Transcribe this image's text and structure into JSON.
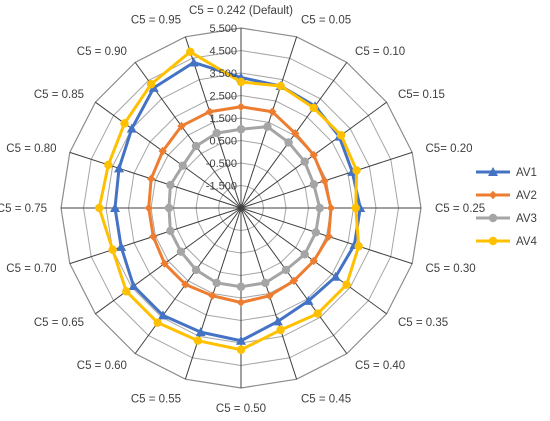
{
  "chart_data": {
    "type": "radar",
    "categories": [
      "C5 = 0.242 (Default)",
      "C5 = 0.05",
      "C5 = 0.10",
      "C5= 0.15",
      "C5= 0.20",
      "C5 = 0.25",
      "C5 = 0.30",
      "C5 = 0.35",
      "C5 = 0.40",
      "C5 = 0.45",
      "C5 = 0.50",
      "C5 = 0.55",
      "C5 = 0.60",
      "C5 = 0.65",
      "C5 = 0.70",
      "C5 = 0.75",
      "C5 = 0.80",
      "C5 = 0.85",
      "C5 = 0.90",
      "C5 = 0.95"
    ],
    "tick_labels": [
      "-1.500",
      "-0.500",
      "0.500",
      "1.500",
      "2.500",
      "3.500",
      "4.500",
      "5.500"
    ],
    "r_range": [
      -2.5,
      5.5
    ],
    "grid": true,
    "legend_position": "right",
    "series": [
      {
        "name": "AV1",
        "color": "#4472C4",
        "marker": "triangle",
        "values": [
          3.3,
          3.2,
          3.1,
          2.9,
          2.7,
          2.8,
          2.8,
          2.7,
          2.6,
          2.8,
          3.4,
          3.3,
          3.4,
          3.4,
          3.1,
          3.1,
          3.2,
          3.5,
          4.1,
          4.3
        ]
      },
      {
        "name": "AV2",
        "color": "#ED7D31",
        "marker": "diamond",
        "values": [
          2.0,
          2.0,
          1.6,
          1.5,
          1.4,
          1.5,
          1.6,
          1.5,
          1.5,
          1.6,
          1.7,
          1.6,
          1.7,
          1.7,
          1.6,
          1.6,
          1.7,
          1.8,
          2.0,
          2.0
        ]
      },
      {
        "name": "AV3",
        "color": "#A5A5A5",
        "marker": "circle",
        "values": [
          1.0,
          1.3,
          1.1,
          1.0,
          0.9,
          1.0,
          1.0,
          1.0,
          0.9,
          1.0,
          1.0,
          1.0,
          0.9,
          0.8,
          0.8,
          0.7,
          0.8,
          0.7,
          0.9,
          1.0
        ]
      },
      {
        "name": "AV4",
        "color": "#FFC000",
        "marker": "circle",
        "values": [
          3.1,
          3.2,
          3.0,
          3.0,
          2.9,
          2.6,
          3.0,
          3.3,
          3.3,
          3.2,
          3.8,
          3.7,
          3.8,
          3.8,
          3.5,
          3.8,
          3.7,
          3.9,
          4.3,
          4.8
        ]
      }
    ]
  }
}
